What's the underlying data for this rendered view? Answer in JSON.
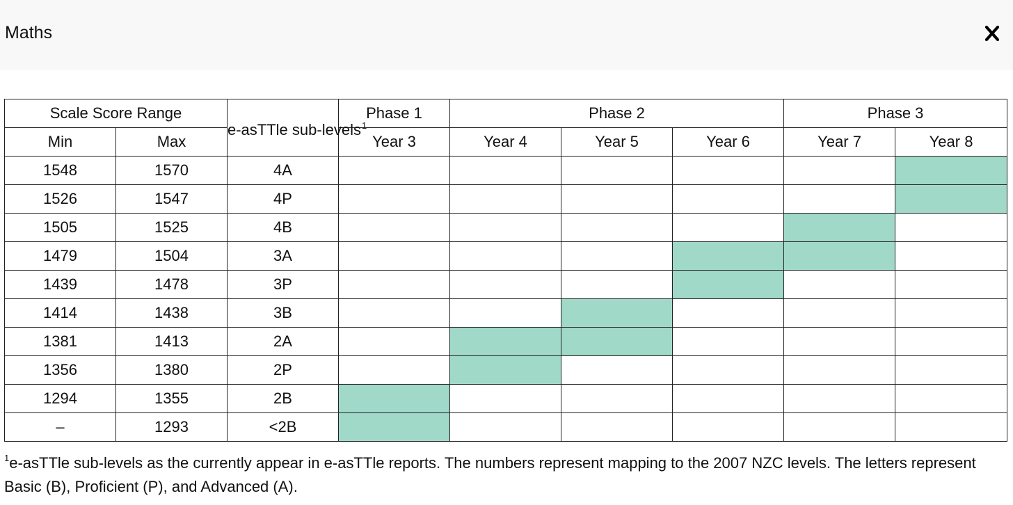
{
  "header": {
    "title": "Maths",
    "close_icon": "close-icon"
  },
  "table": {
    "scale_score_range": "Scale Score Range",
    "min": "Min",
    "max": "Max",
    "sublevels_label": "e-asTTle sub-levels",
    "sublevels_footnote_mark": "1",
    "phases": [
      "Phase 1",
      "Phase 2",
      "Phase 3"
    ],
    "years": [
      "Year 3",
      "Year 4",
      "Year 5",
      "Year 6",
      "Year 7",
      "Year 8"
    ],
    "highlight_color": "#a1d9c9",
    "rows": [
      {
        "min": "1548",
        "max": "1570",
        "level": "4A",
        "years": [
          false,
          false,
          false,
          false,
          false,
          true
        ]
      },
      {
        "min": "1526",
        "max": "1547",
        "level": "4P",
        "years": [
          false,
          false,
          false,
          false,
          false,
          true
        ]
      },
      {
        "min": "1505",
        "max": "1525",
        "level": "4B",
        "years": [
          false,
          false,
          false,
          false,
          true,
          false
        ]
      },
      {
        "min": "1479",
        "max": "1504",
        "level": "3A",
        "years": [
          false,
          false,
          false,
          true,
          true,
          false
        ]
      },
      {
        "min": "1439",
        "max": "1478",
        "level": "3P",
        "years": [
          false,
          false,
          false,
          true,
          false,
          false
        ]
      },
      {
        "min": "1414",
        "max": "1438",
        "level": "3B",
        "years": [
          false,
          false,
          true,
          false,
          false,
          false
        ]
      },
      {
        "min": "1381",
        "max": "1413",
        "level": "2A",
        "years": [
          false,
          true,
          true,
          false,
          false,
          false
        ]
      },
      {
        "min": "1356",
        "max": "1380",
        "level": "2P",
        "years": [
          false,
          true,
          false,
          false,
          false,
          false
        ]
      },
      {
        "min": "1294",
        "max": "1355",
        "level": "2B",
        "years": [
          true,
          false,
          false,
          false,
          false,
          false
        ]
      },
      {
        "min": "–",
        "max": "1293",
        "level": "<2B",
        "years": [
          true,
          false,
          false,
          false,
          false,
          false
        ]
      }
    ]
  },
  "footnote": {
    "mark": "1",
    "text": "e-asTTle sub-levels as the currently appear in e-asTTle reports. The numbers represent mapping to the 2007 NZC levels. The letters represent Basic (B), Proficient (P), and Advanced (A)."
  }
}
